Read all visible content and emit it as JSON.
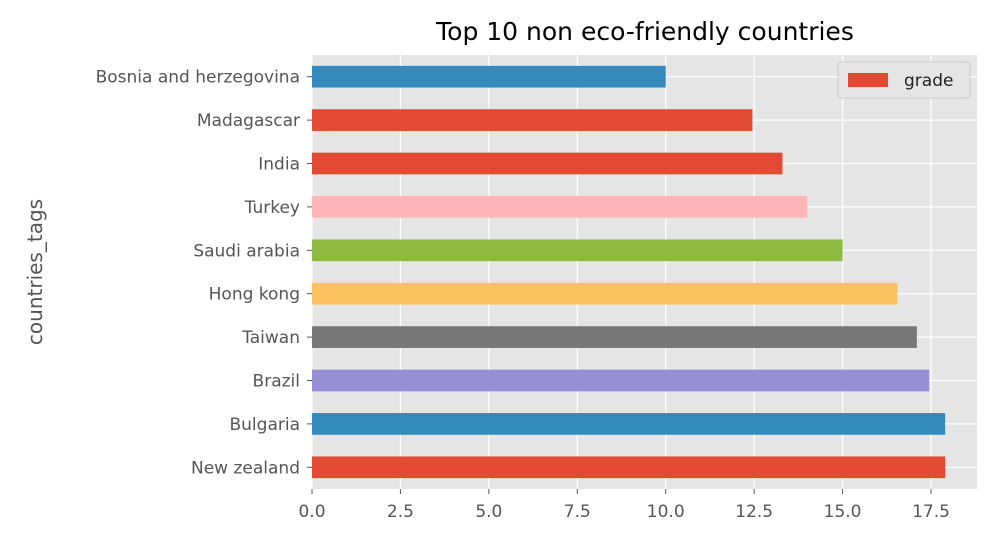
{
  "chart_data": {
    "type": "bar",
    "orientation": "horizontal",
    "title": "Top 10 non eco-friendly countries",
    "xlabel": "",
    "ylabel": "countries_tags",
    "categories": [
      "New zealand",
      "Bulgaria",
      "Brazil",
      "Taiwan",
      "Hong kong",
      "Saudi arabia",
      "Turkey",
      "India",
      "Madagascar",
      "Bosnia and herzegovina"
    ],
    "series": [
      {
        "name": "grade",
        "values": [
          17.9,
          17.9,
          17.45,
          17.1,
          16.55,
          15.0,
          14.0,
          13.3,
          12.45,
          10.0
        ]
      }
    ],
    "bar_colors": [
      "#E24A33",
      "#348ABD",
      "#988ED5",
      "#777777",
      "#FBC15E",
      "#8EBA42",
      "#FFB5B8",
      "#E24A33",
      "#E24A33",
      "#348ABD"
    ],
    "xlim": [
      0,
      18.8
    ],
    "xticks": [
      0.0,
      2.5,
      5.0,
      7.5,
      10.0,
      12.5,
      15.0,
      17.5
    ],
    "xtick_labels": [
      "0.0",
      "2.5",
      "5.0",
      "7.5",
      "10.0",
      "12.5",
      "15.0",
      "17.5"
    ],
    "grid": true,
    "background": "#E5E5E5",
    "grid_color": "#FFFFFF",
    "legend": {
      "position": "top-right",
      "label": "grade",
      "color": "#E24A33"
    }
  }
}
